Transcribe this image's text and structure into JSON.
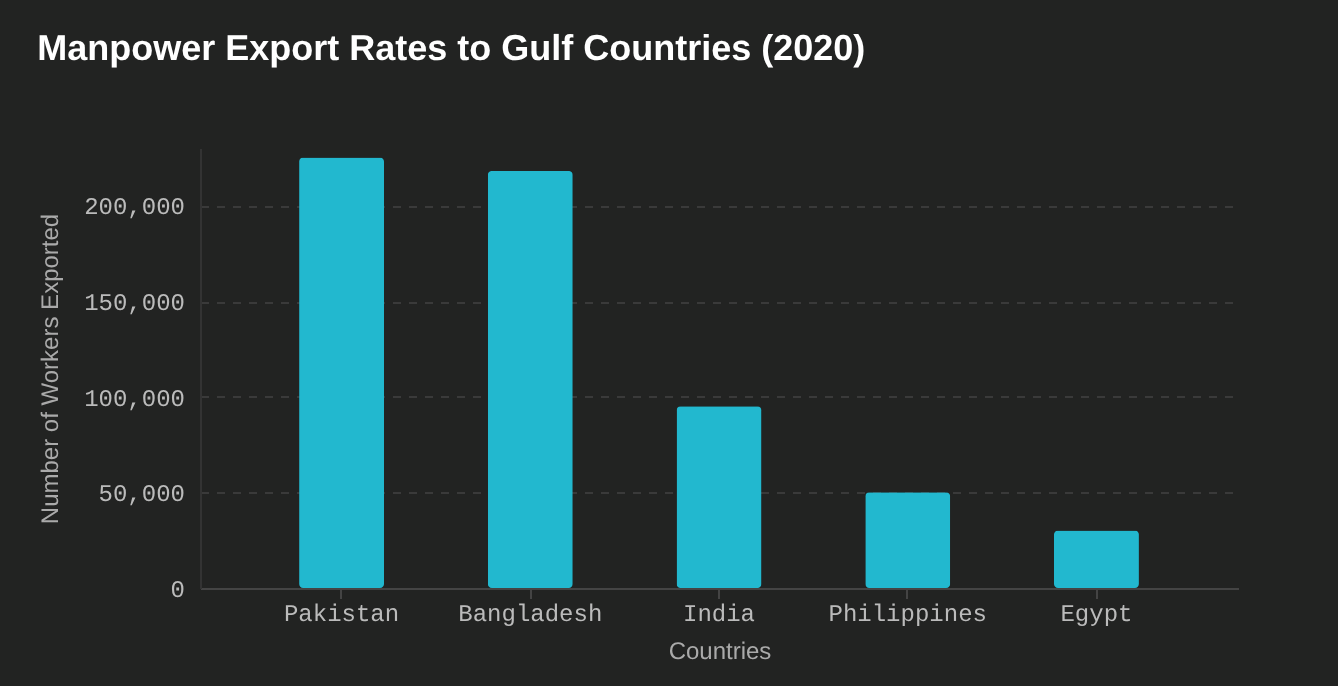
{
  "chart_data": {
    "type": "bar",
    "title": "Manpower Export Rates to Gulf Countries (2020)",
    "xlabel": "Countries",
    "ylabel": "Number of Workers Exported",
    "categories": [
      "Pakistan",
      "Bangladesh",
      "India",
      "Philippines",
      "Egypt"
    ],
    "values": [
      225000,
      218000,
      95000,
      50000,
      30000
    ],
    "color": "#22b8cf",
    "ylim": [
      0,
      230000
    ],
    "yticks": [
      0,
      {
        "value": 50000,
        "label": "50,000"
      },
      {
        "value": 100000,
        "label": "100,000"
      },
      {
        "value": 150000,
        "label": "150,000"
      },
      {
        "value": 200000,
        "label": "200,000"
      }
    ],
    "grid": "y"
  }
}
